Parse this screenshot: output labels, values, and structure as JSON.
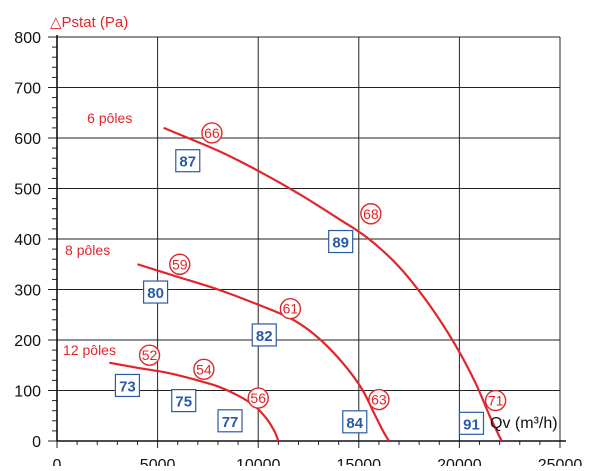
{
  "chart_data": {
    "type": "line",
    "ylabel": "△Pstat (Pa)",
    "xlabel": "Qv (m³/h)",
    "xlim": [
      0,
      25000
    ],
    "ylim": [
      0,
      800
    ],
    "x_ticks": [
      "0",
      "5000",
      "10000",
      "15000",
      "20000",
      "25000"
    ],
    "y_ticks": [
      "0",
      "100",
      "200",
      "300",
      "400",
      "500",
      "600",
      "700",
      "800"
    ],
    "grid": true,
    "curve_color": "#e0262b",
    "series": [
      {
        "name": "6 pôles",
        "points": [
          [
            5300,
            620
          ],
          [
            8000,
            575
          ],
          [
            10000,
            535
          ],
          [
            12000,
            490
          ],
          [
            14000,
            440
          ],
          [
            15500,
            400
          ],
          [
            17000,
            345
          ],
          [
            18500,
            270
          ],
          [
            19800,
            190
          ],
          [
            20800,
            115
          ],
          [
            21500,
            50
          ],
          [
            22100,
            0
          ]
        ]
      },
      {
        "name": "8 pôles",
        "points": [
          [
            4000,
            350
          ],
          [
            6000,
            325
          ],
          [
            8000,
            300
          ],
          [
            10000,
            270
          ],
          [
            11500,
            245
          ],
          [
            12500,
            220
          ],
          [
            13500,
            185
          ],
          [
            14500,
            140
          ],
          [
            15200,
            100
          ],
          [
            15700,
            60
          ],
          [
            16200,
            20
          ],
          [
            16500,
            0
          ]
        ]
      },
      {
        "name": "12 pôles",
        "points": [
          [
            2600,
            155
          ],
          [
            4000,
            145
          ],
          [
            5500,
            135
          ],
          [
            7000,
            120
          ],
          [
            8000,
            108
          ],
          [
            9000,
            90
          ],
          [
            9800,
            70
          ],
          [
            10400,
            45
          ],
          [
            10800,
            20
          ],
          [
            11000,
            0
          ]
        ]
      }
    ],
    "red_markers": [
      {
        "label": "66",
        "x": 7700,
        "y": 610
      },
      {
        "label": "68",
        "x": 15600,
        "y": 450
      },
      {
        "label": "59",
        "x": 6100,
        "y": 350
      },
      {
        "label": "61",
        "x": 11600,
        "y": 262
      },
      {
        "label": "52",
        "x": 4600,
        "y": 170
      },
      {
        "label": "54",
        "x": 7300,
        "y": 142
      },
      {
        "label": "56",
        "x": 10000,
        "y": 85
      },
      {
        "label": "63",
        "x": 16000,
        "y": 82
      },
      {
        "label": "71",
        "x": 21800,
        "y": 80
      }
    ],
    "blue_markers": [
      {
        "label": "87",
        "x": 6500,
        "y": 555
      },
      {
        "label": "89",
        "x": 14100,
        "y": 395
      },
      {
        "label": "80",
        "x": 4900,
        "y": 295
      },
      {
        "label": "82",
        "x": 10300,
        "y": 210
      },
      {
        "label": "73",
        "x": 3500,
        "y": 110
      },
      {
        "label": "75",
        "x": 6300,
        "y": 80
      },
      {
        "label": "77",
        "x": 8600,
        "y": 40
      },
      {
        "label": "84",
        "x": 14800,
        "y": 38
      },
      {
        "label": "91",
        "x": 20600,
        "y": 35
      }
    ]
  }
}
